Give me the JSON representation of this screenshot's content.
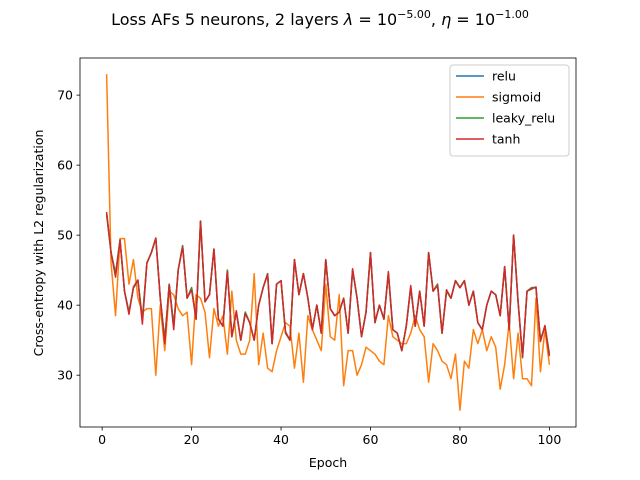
{
  "chart_data": {
    "type": "line",
    "title": "Loss AFs 5 neurons, 2 layers",
    "title_math": "λ = 10−5.00, η = 10−1.00",
    "title_math_parts": {
      "lambda_symbol": "λ",
      "eta_symbol": "η",
      "equals": " = ",
      "base": "10",
      "lambda_exp": "−5.00",
      "eta_exp": "−1.00",
      "sep": ", "
    },
    "xlabel": "Epoch",
    "ylabel": "Cross-entropy with L2 regularization",
    "xlim": [
      -4.95,
      105.95
    ],
    "ylim": [
      22.6,
      75.3
    ],
    "xticks": [
      0,
      20,
      40,
      60,
      80,
      100
    ],
    "yticks": [
      30,
      40,
      50,
      60,
      70
    ],
    "grid": false,
    "legend_position": "top-right",
    "x": [
      1,
      2,
      3,
      4,
      5,
      6,
      7,
      8,
      9,
      10,
      11,
      12,
      13,
      14,
      15,
      16,
      17,
      18,
      19,
      20,
      21,
      22,
      23,
      24,
      25,
      26,
      27,
      28,
      29,
      30,
      31,
      32,
      33,
      34,
      35,
      36,
      37,
      38,
      39,
      40,
      41,
      42,
      43,
      44,
      45,
      46,
      47,
      48,
      49,
      50,
      51,
      52,
      53,
      54,
      55,
      56,
      57,
      58,
      59,
      60,
      61,
      62,
      63,
      64,
      65,
      66,
      67,
      68,
      69,
      70,
      71,
      72,
      73,
      74,
      75,
      76,
      77,
      78,
      79,
      80,
      81,
      82,
      83,
      84,
      85,
      86,
      87,
      88,
      89,
      90,
      91,
      92,
      93,
      94,
      95,
      96,
      97,
      98,
      99,
      100
    ],
    "series": [
      {
        "name": "relu",
        "color": "#1f77b4",
        "values": [
          53.0,
          47.5,
          44.5,
          49.3,
          42.0,
          39.0,
          42.5,
          43.5,
          38.0,
          46.0,
          47.5,
          49.5,
          41.0,
          35.0,
          43.0,
          37.0,
          45.0,
          48.5,
          41.0,
          42.5,
          38.0,
          52.0,
          40.5,
          41.5,
          48.0,
          38.0,
          37.0,
          45.0,
          35.5,
          39.0,
          35.0,
          39.0,
          37.5,
          35.0,
          40.0,
          42.5,
          44.5,
          34.5,
          43.0,
          43.5,
          36.0,
          35.0,
          46.5,
          41.5,
          44.5,
          41.0,
          36.5,
          40.0,
          36.0,
          46.5,
          39.5,
          38.5,
          39.0,
          41.0,
          36.0,
          45.0,
          41.0,
          35.5,
          39.0,
          47.5,
          37.5,
          40.0,
          38.0,
          44.5,
          36.5,
          36.0,
          33.5,
          37.0,
          42.5,
          37.0,
          42.0,
          37.0,
          47.5,
          42.0,
          43.0,
          36.0,
          42.0,
          41.0,
          43.5,
          42.5,
          43.5,
          40.0,
          42.0,
          37.5,
          36.5,
          40.0,
          42.0,
          41.5,
          38.5,
          45.5,
          36.5,
          50.0,
          40.5,
          32.5,
          42.0,
          42.5,
          42.5,
          35.0,
          37.0,
          33.0
        ]
      },
      {
        "name": "sigmoid",
        "color": "#ff7f0e",
        "values": [
          73.0,
          46.0,
          38.5,
          49.5,
          49.5,
          43.0,
          46.5,
          41.0,
          39.0,
          39.5,
          39.5,
          30.0,
          40.0,
          33.5,
          42.0,
          41.5,
          39.5,
          38.5,
          39.0,
          31.5,
          41.5,
          41.0,
          39.0,
          32.5,
          39.5,
          37.0,
          38.5,
          33.0,
          42.0,
          35.0,
          33.0,
          33.0,
          35.0,
          44.5,
          31.5,
          36.0,
          31.0,
          30.5,
          33.5,
          35.5,
          37.5,
          37.0,
          31.0,
          36.0,
          29.0,
          38.5,
          36.5,
          35.0,
          33.5,
          43.0,
          35.5,
          35.0,
          41.5,
          28.5,
          33.5,
          33.5,
          30.0,
          31.5,
          34.0,
          33.5,
          33.0,
          32.0,
          31.5,
          38.5,
          35.5,
          35.0,
          34.5,
          34.5,
          36.0,
          38.5,
          36.5,
          35.5,
          29.0,
          34.5,
          33.5,
          32.0,
          31.5,
          29.5,
          33.0,
          25.0,
          32.0,
          31.0,
          36.5,
          34.5,
          36.5,
          33.5,
          35.5,
          34.0,
          28.0,
          31.5,
          37.5,
          29.5,
          36.0,
          29.5,
          29.5,
          28.5,
          41.0,
          30.5,
          36.5,
          31.5
        ]
      },
      {
        "name": "leaky_relu",
        "color": "#2ca02c",
        "values": [
          53.0,
          47.5,
          44.5,
          49.3,
          42.0,
          39.0,
          42.5,
          43.5,
          38.0,
          46.0,
          47.5,
          49.5,
          41.0,
          35.0,
          43.0,
          37.0,
          45.0,
          48.5,
          41.0,
          42.5,
          38.0,
          52.0,
          40.5,
          41.5,
          48.0,
          38.0,
          37.0,
          45.0,
          35.5,
          39.0,
          35.0,
          39.0,
          37.5,
          35.0,
          40.0,
          42.5,
          44.5,
          34.5,
          43.0,
          43.5,
          36.0,
          35.0,
          46.5,
          41.5,
          44.5,
          41.0,
          36.5,
          40.0,
          36.0,
          46.5,
          39.5,
          38.5,
          39.0,
          41.0,
          36.0,
          45.0,
          41.0,
          35.5,
          39.0,
          47.5,
          37.5,
          40.0,
          38.0,
          44.5,
          36.5,
          36.0,
          33.5,
          37.0,
          42.5,
          37.0,
          42.0,
          37.0,
          47.5,
          42.0,
          43.0,
          36.0,
          42.0,
          41.0,
          43.5,
          42.5,
          43.5,
          40.0,
          42.0,
          37.5,
          36.5,
          40.0,
          42.0,
          41.5,
          38.5,
          45.5,
          36.5,
          50.0,
          40.5,
          32.5,
          42.0,
          42.5,
          42.5,
          35.0,
          37.0,
          33.0
        ]
      },
      {
        "name": "tanh",
        "color": "#d62728",
        "values": [
          53.3,
          47.5,
          44.0,
          49.3,
          42.0,
          38.7,
          42.6,
          43.6,
          37.3,
          46.0,
          47.5,
          49.6,
          41.0,
          34.5,
          42.9,
          36.5,
          45.0,
          48.3,
          41.0,
          42.2,
          38.0,
          52.0,
          40.5,
          41.5,
          48.0,
          38.0,
          37.0,
          44.8,
          35.5,
          39.2,
          35.0,
          38.8,
          37.5,
          35.0,
          40.0,
          42.5,
          44.4,
          34.5,
          43.0,
          43.5,
          36.2,
          35.0,
          46.5,
          41.5,
          44.5,
          41.0,
          36.5,
          40.0,
          36.0,
          46.5,
          39.5,
          38.5,
          39.0,
          41.0,
          36.0,
          45.2,
          41.0,
          35.5,
          39.0,
          47.5,
          37.5,
          40.0,
          38.0,
          44.8,
          36.5,
          36.0,
          33.5,
          37.0,
          42.8,
          37.0,
          42.0,
          37.0,
          47.5,
          42.0,
          42.8,
          36.0,
          42.2,
          41.0,
          43.5,
          42.5,
          43.5,
          40.0,
          42.0,
          37.5,
          36.5,
          40.0,
          42.0,
          41.5,
          38.5,
          45.5,
          36.5,
          50.0,
          40.5,
          32.7,
          42.0,
          42.3,
          42.6,
          34.8,
          37.1,
          32.7
        ]
      }
    ]
  }
}
